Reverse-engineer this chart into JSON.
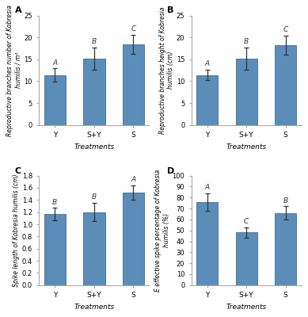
{
  "panels": [
    {
      "label": "A",
      "ylabel_parts": [
        [
          "Reproductive branches number of ",
          false
        ],
        [
          "Kobresia",
          true
        ],
        [
          "\nhumilis",
          true
        ],
        [
          " / m²",
          false
        ]
      ],
      "ylabel_simple": "Reproductive branches number of Kobresia\nhumilis / m²",
      "xlabel": "Treatments",
      "categories": [
        "Y",
        "S+Y",
        "S"
      ],
      "values": [
        11.4,
        15.2,
        18.4
      ],
      "errors": [
        1.5,
        2.5,
        2.2
      ],
      "sig_labels": [
        "A",
        "B",
        "C"
      ],
      "ylim": [
        0,
        25
      ],
      "yticks": [
        0,
        5,
        10,
        15,
        20,
        25
      ]
    },
    {
      "label": "B",
      "ylabel_simple": "Reproductive branches height of Kobresia\nhumilis (cm)",
      "xlabel": "Treatments",
      "categories": [
        "Y",
        "S+Y",
        "S"
      ],
      "values": [
        11.4,
        15.2,
        18.2
      ],
      "errors": [
        1.2,
        2.5,
        2.2
      ],
      "sig_labels": [
        "A",
        "B",
        "C"
      ],
      "ylim": [
        0,
        25
      ],
      "yticks": [
        0,
        5,
        10,
        15,
        20,
        25
      ]
    },
    {
      "label": "C",
      "ylabel_simple": "Spike length of Kobresia humilis (cm)",
      "xlabel": "Treatments",
      "categories": [
        "Y",
        "S+Y",
        "S"
      ],
      "values": [
        1.17,
        1.2,
        1.52
      ],
      "errors": [
        0.1,
        0.15,
        0.12
      ],
      "sig_labels": [
        "B",
        "B",
        "A"
      ],
      "ylim": [
        0,
        1.8
      ],
      "yticks": [
        0,
        0.2,
        0.4,
        0.6,
        0.8,
        1.0,
        1.2,
        1.4,
        1.6,
        1.8
      ]
    },
    {
      "label": "D",
      "ylabel_simple": "E effective spike percentage of Kobresia\nhumilis (%)",
      "xlabel": "Treatments",
      "categories": [
        "Y",
        "S+Y",
        "S"
      ],
      "values": [
        76.0,
        48.0,
        66.0
      ],
      "errors": [
        8.0,
        5.0,
        6.0
      ],
      "sig_labels": [
        "A",
        "C",
        "B"
      ],
      "ylim": [
        0,
        100
      ],
      "yticks": [
        0,
        10,
        20,
        30,
        40,
        50,
        60,
        70,
        80,
        90,
        100
      ]
    }
  ],
  "bar_color": "#5b8db8",
  "bar_edge_color": "#4a7aa0",
  "error_color": "#333333",
  "sig_color": "#333333",
  "background_color": "#ffffff",
  "bar_width": 0.55
}
